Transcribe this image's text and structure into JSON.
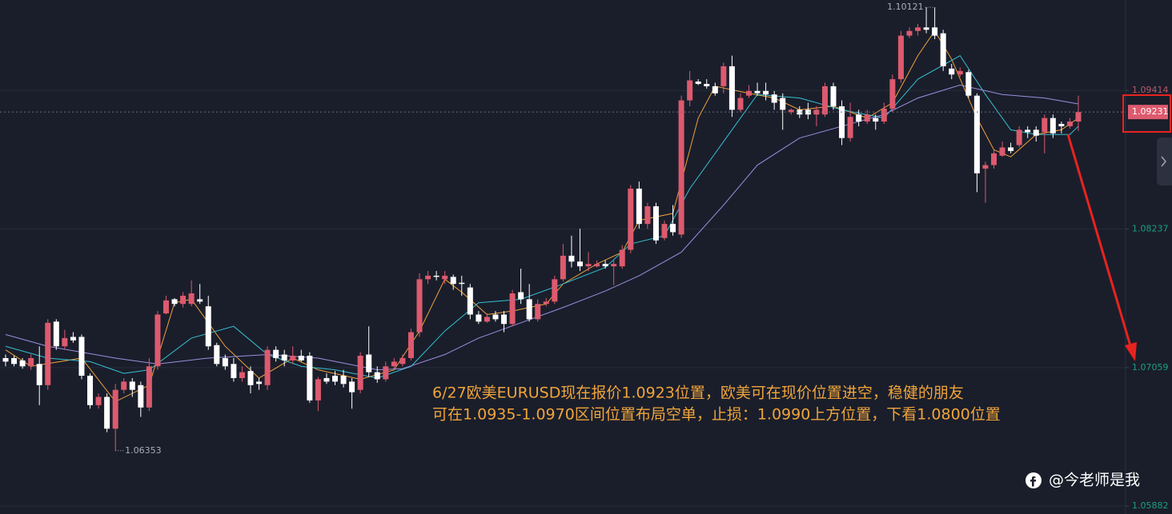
{
  "chart_data": {
    "type": "candlestick",
    "up_color": "#dd5a6e",
    "down_color": "#ffffff",
    "ylim": [
      1.05815,
      1.10183
    ],
    "yticks": [
      1.09414,
      1.08237,
      1.07059,
      1.05882
    ],
    "grid": true,
    "open": [
      1.0714,
      1.0714,
      1.0712,
      1.0707,
      1.0709,
      1.0691,
      1.0745,
      1.0724,
      1.0732,
      1.0732,
      1.0699,
      1.0674,
      1.0681,
      1.0654,
      1.0687,
      1.0694,
      1.0691,
      1.0672,
      1.0707,
      1.0752,
      1.0764,
      1.076,
      1.076,
      1.0764,
      1.0758,
      1.0725,
      1.0714,
      1.0709,
      1.0697,
      1.0703,
      1.0694,
      1.0691,
      1.0721,
      1.0717,
      1.0712,
      1.0716,
      1.0716,
      1.0678,
      1.0697,
      1.0699,
      1.0699,
      1.0694,
      1.0687,
      1.0717,
      1.0702,
      1.0696,
      1.0707,
      1.0709,
      1.0714,
      1.0736,
      1.0781,
      1.0784,
      1.0781,
      1.0783,
      1.0778,
      1.0774,
      1.0751,
      1.0745,
      1.0751,
      1.0751,
      1.0743,
      1.077,
      1.0764,
      1.0747,
      1.076,
      1.0762,
      1.0781,
      1.0801,
      1.0796,
      1.0792,
      1.0792,
      1.0794,
      1.0792,
      1.0792,
      1.0806,
      1.0858,
      1.0828,
      1.0843,
      1.0816,
      1.0828,
      1.0819,
      1.0933,
      1.0949,
      1.0947,
      1.0945,
      1.0945,
      1.0962,
      1.0925,
      1.0937,
      1.0941,
      1.0941,
      1.0938,
      1.0935,
      1.0923,
      1.0925,
      1.0925,
      1.0921,
      1.0921,
      1.0945,
      1.0928,
      1.0901,
      1.0921,
      1.0915,
      1.0918,
      1.0915,
      1.0926,
      1.0951,
      1.0988,
      1.0992,
      1.0995,
      1.0995,
      1.099,
      1.096,
      1.0955,
      1.0957,
      1.0937,
      1.0875,
      1.0878,
      1.0886,
      1.0893,
      1.0895,
      1.0908,
      1.0908,
      1.0906,
      1.0918,
      1.0913,
      1.0911,
      1.0915
    ],
    "high": [
      1.0717,
      1.0716,
      1.0714,
      1.0717,
      1.0724,
      1.0747,
      1.0747,
      1.0738,
      1.0736,
      1.0734,
      1.0701,
      1.0684,
      1.0684,
      1.0692,
      1.0697,
      1.0697,
      1.0694,
      1.0714,
      1.0754,
      1.0767,
      1.0765,
      1.077,
      1.078,
      1.0777,
      1.0767,
      1.0727,
      1.0717,
      1.0714,
      1.0707,
      1.0707,
      1.0697,
      1.0724,
      1.0724,
      1.0721,
      1.0724,
      1.0721,
      1.0719,
      1.0698,
      1.0701,
      1.0703,
      1.0704,
      1.0697,
      1.0719,
      1.0741,
      1.0707,
      1.0711,
      1.0714,
      1.0717,
      1.0739,
      1.0786,
      1.0788,
      1.0788,
      1.0788,
      1.0785,
      1.0784,
      1.0777,
      1.0754,
      1.0752,
      1.0754,
      1.0754,
      1.0772,
      1.079,
      1.0777,
      1.0764,
      1.0765,
      1.0784,
      1.0811,
      1.0818,
      1.0824,
      1.0804,
      1.0797,
      1.0797,
      1.0797,
      1.081,
      1.0861,
      1.0864,
      1.0846,
      1.0846,
      1.0831,
      1.0844,
      1.0937,
      1.0958,
      1.0951,
      1.0951,
      1.0948,
      1.0965,
      1.0971,
      1.0939,
      1.0946,
      1.0948,
      1.0948,
      1.0941,
      1.0939,
      1.0926,
      1.0928,
      1.0931,
      1.0928,
      1.0948,
      1.0948,
      1.0933,
      1.0931,
      1.0925,
      1.0925,
      1.0921,
      1.0931,
      1.0955,
      1.0992,
      1.0995,
      1.0998,
      1.1012,
      1.10121,
      1.0993,
      1.0964,
      1.0961,
      1.0959,
      1.0939,
      1.0881,
      1.0891,
      1.0898,
      1.0897,
      1.0911,
      1.0911,
      1.0911,
      1.0921,
      1.0921,
      1.0915,
      1.0918,
      1.0937
    ],
    "low": [
      1.0707,
      1.0707,
      1.0705,
      1.0704,
      1.0674,
      1.0687,
      1.0721,
      1.0721,
      1.0727,
      1.0696,
      1.0671,
      1.0671,
      1.0651,
      1.06353,
      1.0684,
      1.0681,
      1.0664,
      1.0669,
      1.0704,
      1.0751,
      1.0758,
      1.0757,
      1.0758,
      1.076,
      1.0721,
      1.0707,
      1.0704,
      1.0694,
      1.0694,
      1.0684,
      1.0687,
      1.0687,
      1.0711,
      1.0707,
      1.0709,
      1.0711,
      1.0676,
      1.0669,
      1.0692,
      1.0691,
      1.0689,
      1.0671,
      1.0684,
      1.0698,
      1.0693,
      1.0694,
      1.0705,
      1.0707,
      1.0712,
      1.0732,
      1.0777,
      1.078,
      1.0777,
      1.0772,
      1.0767,
      1.0747,
      1.0743,
      1.0744,
      1.0745,
      1.0736,
      1.0741,
      1.076,
      1.0745,
      1.0745,
      1.0758,
      1.076,
      1.0779,
      1.0791,
      1.0788,
      1.0788,
      1.0791,
      1.079,
      1.0776,
      1.079,
      1.0803,
      1.0824,
      1.0824,
      1.0811,
      1.0814,
      1.0818,
      1.0816,
      1.0928,
      1.0946,
      1.0943,
      1.0937,
      1.0939,
      1.0919,
      1.0923,
      1.0935,
      1.0937,
      1.0933,
      1.0925,
      1.0908,
      1.0921,
      1.0918,
      1.0917,
      1.0911,
      1.0919,
      1.0925,
      1.0895,
      1.0898,
      1.0911,
      1.0913,
      1.0908,
      1.0913,
      1.0923,
      1.0948,
      1.0986,
      1.0988,
      1.099,
      1.0985,
      1.0958,
      1.0951,
      1.0953,
      1.0935,
      1.0855,
      1.0846,
      1.0875,
      1.0885,
      1.0888,
      1.0893,
      1.0901,
      1.0898,
      1.0888,
      1.0901,
      1.0905,
      1.0909,
      1.0907
    ],
    "close": [
      1.0711,
      1.0709,
      1.0707,
      1.0714,
      1.0691,
      1.0744,
      1.0724,
      1.0731,
      1.0729,
      1.0699,
      1.0674,
      1.0681,
      1.0654,
      1.0687,
      1.0694,
      1.0687,
      1.0672,
      1.0707,
      1.0751,
      1.0763,
      1.076,
      1.0767,
      1.0769,
      1.0762,
      1.0724,
      1.0709,
      1.0707,
      1.0697,
      1.0702,
      1.0691,
      1.0692,
      1.0721,
      1.0714,
      1.0712,
      1.0716,
      1.0712,
      1.0678,
      1.0696,
      1.0694,
      1.0694,
      1.0692,
      1.0685,
      1.0716,
      1.0702,
      1.0696,
      1.0707,
      1.0711,
      1.0714,
      1.0736,
      1.0781,
      1.0784,
      1.0783,
      1.0784,
      1.0777,
      1.0777,
      1.0751,
      1.0745,
      1.0749,
      1.0747,
      1.0743,
      1.0769,
      1.0764,
      1.0747,
      1.076,
      1.0762,
      1.0781,
      1.0801,
      1.0796,
      1.0792,
      1.0794,
      1.0794,
      1.0792,
      1.0794,
      1.0806,
      1.0858,
      1.0828,
      1.0843,
      1.0814,
      1.0828,
      1.0821,
      1.0933,
      1.095,
      1.0947,
      1.0945,
      1.0939,
      1.0962,
      1.0925,
      1.0935,
      1.0941,
      1.0939,
      1.0938,
      1.0931,
      1.0925,
      1.0925,
      1.0921,
      1.0921,
      1.0925,
      1.0945,
      1.0928,
      1.0901,
      1.0919,
      1.0915,
      1.0921,
      1.0915,
      1.0926,
      1.0951,
      1.0988,
      1.0992,
      1.0995,
      1.0993,
      1.0988,
      1.0962,
      1.0955,
      1.0958,
      1.0937,
      1.0871,
      1.0878,
      1.0888,
      1.0893,
      1.089,
      1.0908,
      1.0906,
      1.0903,
      1.0918,
      1.0905,
      1.0911,
      1.0915,
      1.09231
    ],
    "series": [
      {
        "color": "#f0a03c",
        "x": [
          0,
          3,
          9,
          13,
          17,
          20,
          22,
          26,
          30,
          34,
          37,
          42,
          46,
          49,
          52,
          54,
          57,
          60,
          64,
          66,
          70,
          73,
          75,
          79,
          82,
          84,
          88,
          91,
          94,
          98,
          102,
          105,
          108,
          110,
          112,
          115,
          117,
          119,
          122,
          125,
          127
        ],
        "values": [
          1.0721,
          1.0707,
          1.0714,
          1.0677,
          1.0691,
          1.0761,
          1.0764,
          1.0724,
          1.0697,
          1.0714,
          1.0704,
          1.0696,
          1.0704,
          1.0737,
          1.0781,
          1.077,
          1.0751,
          1.0754,
          1.076,
          1.0777,
          1.0794,
          1.0804,
          1.0831,
          1.0837,
          1.0918,
          1.0945,
          1.0939,
          1.0935,
          1.0925,
          1.0928,
          1.0918,
          1.0931,
          1.0971,
          1.0992,
          1.0968,
          1.0918,
          1.0891,
          1.0885,
          1.0904,
          1.0908,
          1.0918
        ]
      },
      {
        "color": "#35c0d0",
        "x": [
          0,
          5,
          10,
          14,
          17,
          22,
          27,
          31,
          35,
          39,
          44,
          48,
          52,
          56,
          61,
          66,
          71,
          74,
          78,
          81,
          85,
          89,
          94,
          99,
          104,
          108,
          113,
          116,
          119,
          122,
          126,
          127
        ],
        "values": [
          1.0724,
          1.0714,
          1.0711,
          1.0701,
          1.0704,
          1.0731,
          1.0741,
          1.0717,
          1.0707,
          1.0704,
          1.0697,
          1.0707,
          1.0737,
          1.0761,
          1.0764,
          1.0777,
          1.0791,
          1.0811,
          1.0818,
          1.0858,
          1.0898,
          1.0938,
          1.0935,
          1.0925,
          1.0918,
          1.0951,
          1.0971,
          1.0938,
          1.0908,
          1.0904,
          1.0904,
          1.0911
        ]
      },
      {
        "color": "#9b8fe0",
        "x": [
          0,
          5,
          13,
          18,
          24,
          31,
          37,
          44,
          47,
          52,
          56,
          61,
          66,
          71,
          75,
          80,
          85,
          89,
          94,
          99,
          104,
          108,
          113,
          118,
          123,
          127
        ],
        "values": [
          1.0734,
          1.0724,
          1.0714,
          1.0709,
          1.0714,
          1.0717,
          1.0714,
          1.0704,
          1.0705,
          1.0717,
          1.0731,
          1.0744,
          1.0757,
          1.0771,
          1.0784,
          1.0804,
          1.0844,
          1.0878,
          1.0901,
          1.0911,
          1.0921,
          1.0935,
          1.0946,
          1.0938,
          1.0935,
          1.093
        ]
      }
    ],
    "last_price": 1.09231,
    "max_label": 1.10121,
    "min_label": 1.06353,
    "note": [
      "6/27欧美EURUSD现在报价1.0923位置，欧美可在现价位置进空，稳健的朋友",
      "可在1.0935-1.0970区间位置布局空单，止损：1.0990上方位置，下看1.0800位置"
    ],
    "watermark": "@今老师是我"
  }
}
